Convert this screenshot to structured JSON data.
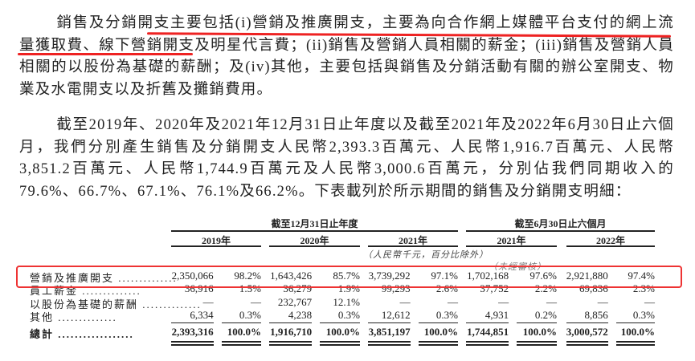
{
  "paragraphs": [
    "銷售及分銷開支主要包括(i)營銷及推廣開支，主要為向合作網上媒體平台支付的網上流量獲取費、線下營銷開支及明星代言費；(ii)銷售及營銷人員相關的薪金；(iii)銷售及營銷人員相關的以股份為基礎的薪酬；及(iv)其他，主要包括與銷售及分銷活動有關的辦公室開支、物業及水電開支以及折舊及攤銷費用。",
    "截至2019年、2020年及2021年12月31日止年度以及截至2021年及2022年6月30日止六個月，我們分別產生銷售及分銷開支人民幣2,393.3百萬元、人民幣1,916.7百萬元、人民幣3,851.2百萬元、人民幣1,744.9百萬元及人民幣3,000.6百萬元，分別佔我們同期收入的79.6%、66.7%、67.1%、76.1%及66.2%。下表載列於所示期間的銷售及分銷開支明細："
  ],
  "table": {
    "group_headers": [
      "截至12月31日止年度",
      "截至6月30日止六個月"
    ],
    "years": [
      "2019年",
      "2020年",
      "2021年",
      "2021年",
      "2022年"
    ],
    "unit_note": "（人民幣千元，百分比除外）",
    "unaudited_note": "（未經審核）",
    "rows": [
      {
        "label": "營銷及推廣開支",
        "values": [
          "2,350,066",
          "98.2%",
          "1,643,426",
          "85.7%",
          "3,739,292",
          "97.1%",
          "1,702,168",
          "97.6%",
          "2,921,880",
          "97.4%"
        ]
      },
      {
        "label": "員工薪金",
        "values": [
          "36,916",
          "1.5%",
          "36,279",
          "1.9%",
          "99,293",
          "2.6%",
          "37,752",
          "2.2%",
          "69,836",
          "2.3%"
        ]
      },
      {
        "label": "以股份為基礎的薪酬",
        "values": [
          "—",
          "—",
          "232,767",
          "12.1%",
          "—",
          "—",
          "—",
          "—",
          "—",
          "—"
        ]
      },
      {
        "label": "其他",
        "values": [
          "6,334",
          "0.3%",
          "4,238",
          "0.3%",
          "12,612",
          "0.3%",
          "4,931",
          "0.2%",
          "8,856",
          "0.3%"
        ]
      }
    ],
    "total": {
      "label": "總計",
      "values": [
        "2,393,316",
        "100.0%",
        "1,916,710",
        "100.0%",
        "3,851,197",
        "100.0%",
        "1,744,851",
        "100.0%",
        "3,000,572",
        "100.0%"
      ]
    }
  },
  "annotation_color": "#e33333"
}
